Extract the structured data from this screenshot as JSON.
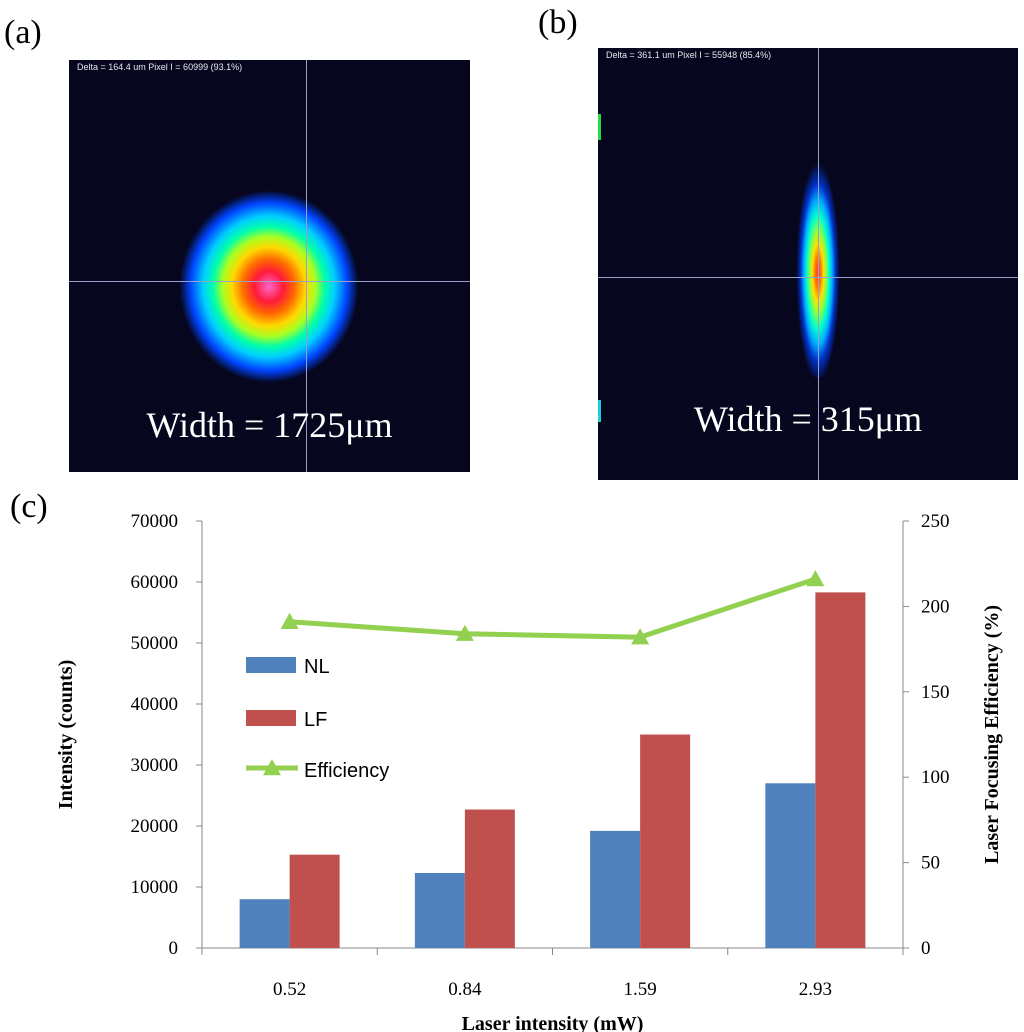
{
  "panels": {
    "a": {
      "label": "(a)",
      "header": "Delta = 164.4 um  Pixel I = 60999 (93.1%)",
      "width_text": "Width = 1725μm"
    },
    "b": {
      "label": "(b)",
      "header": "Delta = 361.1 um  Pixel I = 55948 (85.4%)",
      "width_text": "Width = 315μm"
    },
    "c": {
      "label": "(c)"
    }
  },
  "chart_data": {
    "type": "bar",
    "categories": [
      "0.52",
      "0.84",
      "1.59",
      "2.93"
    ],
    "series": [
      {
        "name": "NL",
        "type": "bar",
        "axis": "left",
        "color": "#4f81bd",
        "values": [
          8000,
          12300,
          19200,
          27000
        ]
      },
      {
        "name": "LF",
        "type": "bar",
        "axis": "left",
        "color": "#c0504d",
        "values": [
          15300,
          22700,
          35000,
          58300
        ]
      },
      {
        "name": "Efficiency",
        "type": "line",
        "axis": "right",
        "color": "#92d050",
        "marker": "triangle",
        "values": [
          191,
          184,
          182,
          216
        ]
      }
    ],
    "xlabel": "Laser intensity (mW)",
    "ylabel": "Intensity (counts)",
    "y2label": "Laser Focusing Efficiency  (%)",
    "ylim": [
      0,
      70000
    ],
    "yticks": [
      "0",
      "10000",
      "20000",
      "30000",
      "40000",
      "50000",
      "60000",
      "70000"
    ],
    "y2lim": [
      0,
      250
    ],
    "y2ticks": [
      "0",
      "50",
      "100",
      "150",
      "200",
      "250"
    ],
    "legend": [
      "NL",
      "LF",
      "Efficiency"
    ],
    "legend_position": "inside-left"
  }
}
